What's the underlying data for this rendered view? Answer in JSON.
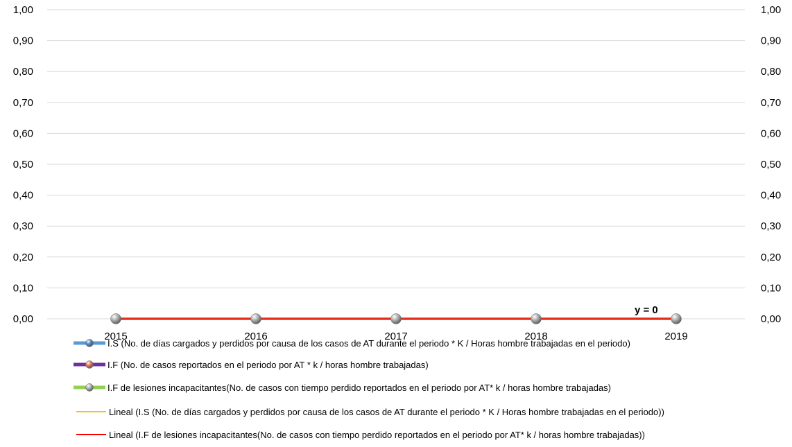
{
  "chart_data": {
    "type": "line",
    "categories": [
      "2015",
      "2016",
      "2017",
      "2018",
      "2019"
    ],
    "ylim": [
      0,
      1
    ],
    "yticks": [
      "0,00",
      "0,10",
      "0,20",
      "0,30",
      "0,40",
      "0,50",
      "0,60",
      "0,70",
      "0,80",
      "0,90",
      "1,00"
    ],
    "y2ticks": [
      "0,00",
      "0,10",
      "0,20",
      "0,30",
      "0,40",
      "0,50",
      "0,60",
      "0,70",
      "0,80",
      "0,90",
      "1,00"
    ],
    "grid": true,
    "legend_position": "bottom",
    "annotation": "y = 0",
    "series": [
      {
        "name": "I.S (No. de días cargados y perdidos por causa de  los casos de AT durante el periodo * K / Horas hombre trabajadas en el periodo)",
        "values": [
          0,
          0,
          0,
          0,
          0
        ],
        "color": "#5b9bd5",
        "marker": "#4a8ac8",
        "style": "marker-line"
      },
      {
        "name": "I.F (No. de casos reportados en el periodo por AT * k / horas hombre trabajadas)",
        "values": [
          0,
          0,
          0,
          0,
          0
        ],
        "color": "#7030a0",
        "marker": "#e8735a",
        "style": "marker-line"
      },
      {
        "name": "I.F de lesiones incapacitantes(No. de casos con tiempo perdido reportados en el periodo por AT* k / horas hombre trabajadas)",
        "values": [
          0,
          0,
          0,
          0,
          0
        ],
        "color": "#92d050",
        "marker": "#b0b0b0",
        "style": "marker-line"
      },
      {
        "name": "Lineal (I.S (No. de días cargados y perdidos por causa de  los casos de AT durante el periodo * K / Horas hombre trabajadas en el periodo))",
        "values": [
          0,
          0,
          0,
          0,
          0
        ],
        "color": "#ffc000",
        "style": "trendline"
      },
      {
        "name": "Lineal (I.F de lesiones incapacitantes(No. de casos con tiempo perdido reportados en el periodo por AT* k / horas hombre trabajadas))",
        "values": [
          0,
          0,
          0,
          0,
          0
        ],
        "color": "#ff0000",
        "style": "trendline"
      }
    ]
  }
}
